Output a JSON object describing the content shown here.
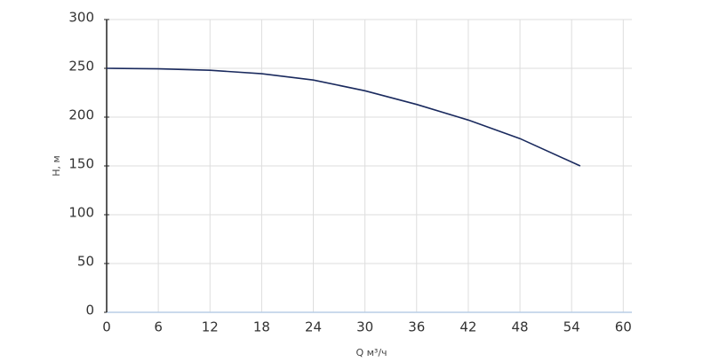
{
  "chart_data": {
    "type": "line",
    "x_label": "Q м³/ч",
    "y_label": "H, м",
    "x": [
      0,
      6,
      12,
      18,
      24,
      30,
      36,
      42,
      48,
      55
    ],
    "series": [
      {
        "name": "H",
        "color": "#1a2a5e",
        "values": [
          250,
          249.5,
          248,
          244.5,
          238,
          227,
          213,
          197,
          178,
          150
        ]
      }
    ],
    "xlim": [
      0,
      61
    ],
    "xticks": [
      0,
      6,
      12,
      18,
      24,
      30,
      36,
      42,
      48,
      54,
      60
    ],
    "ylim": [
      0,
      300
    ],
    "yticks": [
      0,
      50,
      100,
      150,
      200,
      250,
      300
    ],
    "grid": true
  }
}
